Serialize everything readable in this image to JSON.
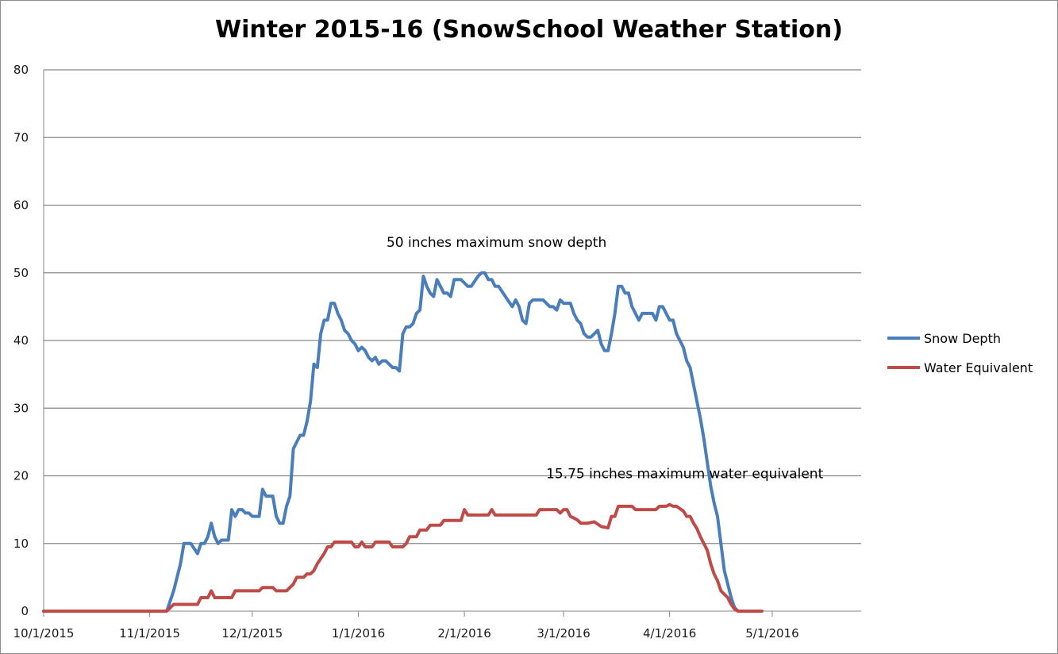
{
  "chart_data": {
    "type": "line",
    "title": "Winter 2015-16 (SnowSchool Weather Station)",
    "xlabel": "",
    "ylabel": "",
    "ylim": [
      0,
      80
    ],
    "yticks": [
      0,
      10,
      20,
      30,
      40,
      50,
      60,
      70,
      80
    ],
    "xlim": [
      "10/1/2015",
      "5/27/2016"
    ],
    "xticks": [
      "10/1/2015",
      "11/1/2015",
      "12/1/2015",
      "1/1/2016",
      "2/1/2016",
      "3/1/2016",
      "4/1/2016",
      "5/1/2016"
    ],
    "grid": "horizontal",
    "legend": "right",
    "series": [
      {
        "name": "Snow Depth",
        "color": "#4a7ebb",
        "points": [
          [
            "10/1/2015",
            0
          ],
          [
            "11/6/2015",
            0
          ],
          [
            "11/8/2015",
            3
          ],
          [
            "11/10/2015",
            7
          ],
          [
            "11/11/2015",
            10
          ],
          [
            "11/13/2015",
            10
          ],
          [
            "11/15/2015",
            8.5
          ],
          [
            "11/16/2015",
            10
          ],
          [
            "11/17/2015",
            10
          ],
          [
            "11/18/2015",
            11
          ],
          [
            "11/19/2015",
            13
          ],
          [
            "11/20/2015",
            11
          ],
          [
            "11/21/2015",
            10
          ],
          [
            "11/22/2015",
            10.5
          ],
          [
            "11/24/2015",
            10.5
          ],
          [
            "11/25/2015",
            15
          ],
          [
            "11/26/2015",
            14
          ],
          [
            "11/27/2015",
            15
          ],
          [
            "11/28/2015",
            15
          ],
          [
            "11/29/2015",
            14.5
          ],
          [
            "11/30/2015",
            14.5
          ],
          [
            "12/1/2015",
            14
          ],
          [
            "12/3/2015",
            14
          ],
          [
            "12/4/2015",
            18
          ],
          [
            "12/5/2015",
            17
          ],
          [
            "12/7/2015",
            17
          ],
          [
            "12/8/2015",
            14
          ],
          [
            "12/9/2015",
            13
          ],
          [
            "12/10/2015",
            13
          ],
          [
            "12/11/2015",
            15.5
          ],
          [
            "12/12/2015",
            17
          ],
          [
            "12/13/2015",
            24
          ],
          [
            "12/15/2015",
            26
          ],
          [
            "12/16/2015",
            26
          ],
          [
            "12/17/2015",
            28
          ],
          [
            "12/18/2015",
            31
          ],
          [
            "12/19/2015",
            36.5
          ],
          [
            "12/20/2015",
            36
          ],
          [
            "12/21/2015",
            41
          ],
          [
            "12/22/2015",
            43
          ],
          [
            "12/23/2015",
            43
          ],
          [
            "12/24/2015",
            45.5
          ],
          [
            "12/25/2015",
            45.5
          ],
          [
            "12/26/2015",
            44
          ],
          [
            "12/27/2015",
            43
          ],
          [
            "12/28/2015",
            41.5
          ],
          [
            "12/29/2015",
            41
          ],
          [
            "12/30/2015",
            40
          ],
          [
            "12/31/2015",
            39.5
          ],
          [
            "1/1/2016",
            38.5
          ],
          [
            "1/2/2016",
            39
          ],
          [
            "1/3/2016",
            38.5
          ],
          [
            "1/4/2016",
            37.5
          ],
          [
            "1/5/2016",
            37
          ],
          [
            "1/6/2016",
            37.5
          ],
          [
            "1/7/2016",
            36.5
          ],
          [
            "1/8/2016",
            37
          ],
          [
            "1/9/2016",
            37
          ],
          [
            "1/11/2016",
            36
          ],
          [
            "1/12/2016",
            36
          ],
          [
            "1/13/2016",
            35.5
          ],
          [
            "1/14/2016",
            41
          ],
          [
            "1/15/2016",
            42
          ],
          [
            "1/16/2016",
            42
          ],
          [
            "1/17/2016",
            42.5
          ],
          [
            "1/18/2016",
            44
          ],
          [
            "1/19/2016",
            44.5
          ],
          [
            "1/20/2016",
            49.5
          ],
          [
            "1/21/2016",
            48
          ],
          [
            "1/22/2016",
            47
          ],
          [
            "1/23/2016",
            46.5
          ],
          [
            "1/24/2016",
            49
          ],
          [
            "1/25/2016",
            48
          ],
          [
            "1/26/2016",
            47
          ],
          [
            "1/27/2016",
            47
          ],
          [
            "1/28/2016",
            46.5
          ],
          [
            "1/29/2016",
            49
          ],
          [
            "1/31/2016",
            49
          ],
          [
            "2/1/2016",
            48.5
          ],
          [
            "2/2/2016",
            48
          ],
          [
            "2/3/2016",
            48
          ],
          [
            "2/5/2016",
            49.5
          ],
          [
            "2/6/2016",
            50
          ],
          [
            "2/7/2016",
            50
          ],
          [
            "2/8/2016",
            49
          ],
          [
            "2/9/2016",
            49
          ],
          [
            "2/10/2016",
            48
          ],
          [
            "2/11/2016",
            48
          ],
          [
            "2/13/2016",
            46.5
          ],
          [
            "2/15/2016",
            45
          ],
          [
            "2/16/2016",
            46
          ],
          [
            "2/17/2016",
            45
          ],
          [
            "2/18/2016",
            43
          ],
          [
            "2/19/2016",
            42.5
          ],
          [
            "2/20/2016",
            45.5
          ],
          [
            "2/21/2016",
            46
          ],
          [
            "2/24/2016",
            46
          ],
          [
            "2/25/2016",
            45.5
          ],
          [
            "2/26/2016",
            45
          ],
          [
            "2/27/2016",
            45
          ],
          [
            "2/28/2016",
            44.5
          ],
          [
            "2/29/2016",
            46
          ],
          [
            "3/1/2016",
            45.5
          ],
          [
            "3/3/2016",
            45.5
          ],
          [
            "3/4/2016",
            44
          ],
          [
            "3/5/2016",
            43
          ],
          [
            "3/6/2016",
            42.5
          ],
          [
            "3/7/2016",
            41
          ],
          [
            "3/8/2016",
            40.5
          ],
          [
            "3/9/2016",
            40.5
          ],
          [
            "3/10/2016",
            41
          ],
          [
            "3/11/2016",
            41.5
          ],
          [
            "3/12/2016",
            39.5
          ],
          [
            "3/13/2016",
            38.5
          ],
          [
            "3/14/2016",
            38.5
          ],
          [
            "3/15/2016",
            41
          ],
          [
            "3/16/2016",
            44
          ],
          [
            "3/17/2016",
            48
          ],
          [
            "3/18/2016",
            48
          ],
          [
            "3/19/2016",
            47
          ],
          [
            "3/20/2016",
            47
          ],
          [
            "3/21/2016",
            45
          ],
          [
            "3/22/2016",
            44
          ],
          [
            "3/23/2016",
            43
          ],
          [
            "3/24/2016",
            44
          ],
          [
            "3/27/2016",
            44
          ],
          [
            "3/28/2016",
            43
          ],
          [
            "3/29/2016",
            45
          ],
          [
            "3/30/2016",
            45
          ],
          [
            "3/31/2016",
            44
          ],
          [
            "4/1/2016",
            43
          ],
          [
            "4/2/2016",
            43
          ],
          [
            "4/3/2016",
            41
          ],
          [
            "4/4/2016",
            40
          ],
          [
            "4/5/2016",
            39
          ],
          [
            "4/6/2016",
            37
          ],
          [
            "4/7/2016",
            36
          ],
          [
            "4/8/2016",
            33.5
          ],
          [
            "4/9/2016",
            31
          ],
          [
            "4/10/2016",
            28.5
          ],
          [
            "4/11/2016",
            25.5
          ],
          [
            "4/12/2016",
            22
          ],
          [
            "4/13/2016",
            18.5
          ],
          [
            "4/14/2016",
            16
          ],
          [
            "4/15/2016",
            14
          ],
          [
            "4/16/2016",
            10
          ],
          [
            "4/17/2016",
            6
          ],
          [
            "4/18/2016",
            4
          ],
          [
            "4/19/2016",
            2
          ],
          [
            "4/20/2016",
            0.5
          ],
          [
            "4/21/2016",
            0
          ],
          [
            "4/25/2016",
            0
          ]
        ]
      },
      {
        "name": "Water Equivalent",
        "color": "#be4b48",
        "points": [
          [
            "10/1/2015",
            0
          ],
          [
            "11/6/2015",
            0
          ],
          [
            "11/8/2015",
            1
          ],
          [
            "11/15/2015",
            1
          ],
          [
            "11/16/2015",
            2
          ],
          [
            "11/18/2015",
            2
          ],
          [
            "11/19/2015",
            3
          ],
          [
            "11/20/2015",
            2
          ],
          [
            "11/25/2015",
            2
          ],
          [
            "11/26/2015",
            3
          ],
          [
            "12/3/2015",
            3
          ],
          [
            "12/4/2015",
            3.5
          ],
          [
            "12/7/2015",
            3.5
          ],
          [
            "12/8/2015",
            3
          ],
          [
            "12/11/2015",
            3
          ],
          [
            "12/12/2015",
            3.5
          ],
          [
            "12/13/2015",
            4
          ],
          [
            "12/14/2015",
            5
          ],
          [
            "12/16/2015",
            5
          ],
          [
            "12/17/2015",
            5.5
          ],
          [
            "12/18/2015",
            5.5
          ],
          [
            "12/19/2015",
            6
          ],
          [
            "12/20/2015",
            7
          ],
          [
            "12/22/2015",
            8.5
          ],
          [
            "12/23/2015",
            9.5
          ],
          [
            "12/24/2015",
            9.5
          ],
          [
            "12/25/2015",
            10.2
          ],
          [
            "12/30/2015",
            10.2
          ],
          [
            "12/31/2015",
            9.5
          ],
          [
            "1/1/2016",
            9.5
          ],
          [
            "1/2/2016",
            10.2
          ],
          [
            "1/3/2016",
            9.5
          ],
          [
            "1/5/2016",
            9.5
          ],
          [
            "1/6/2016",
            10.2
          ],
          [
            "1/10/2016",
            10.2
          ],
          [
            "1/11/2016",
            9.5
          ],
          [
            "1/14/2016",
            9.5
          ],
          [
            "1/15/2016",
            10
          ],
          [
            "1/16/2016",
            11
          ],
          [
            "1/18/2016",
            11
          ],
          [
            "1/19/2016",
            12
          ],
          [
            "1/21/2016",
            12
          ],
          [
            "1/22/2016",
            12.7
          ],
          [
            "1/25/2016",
            12.7
          ],
          [
            "1/26/2016",
            13.4
          ],
          [
            "1/31/2016",
            13.4
          ],
          [
            "2/1/2016",
            15
          ],
          [
            "2/2/2016",
            14.2
          ],
          [
            "2/8/2016",
            14.2
          ],
          [
            "2/9/2016",
            15
          ],
          [
            "2/10/2016",
            14.2
          ],
          [
            "2/22/2016",
            14.2
          ],
          [
            "2/23/2016",
            15
          ],
          [
            "2/28/2016",
            15
          ],
          [
            "2/29/2016",
            14.5
          ],
          [
            "3/1/2016",
            15
          ],
          [
            "3/2/2016",
            15
          ],
          [
            "3/3/2016",
            14
          ],
          [
            "3/5/2016",
            13.5
          ],
          [
            "3/6/2016",
            13
          ],
          [
            "3/8/2016",
            13
          ],
          [
            "3/10/2016",
            13.2
          ],
          [
            "3/12/2016",
            12.5
          ],
          [
            "3/14/2016",
            12.3
          ],
          [
            "3/15/2016",
            14
          ],
          [
            "3/16/2016",
            14
          ],
          [
            "3/17/2016",
            15.5
          ],
          [
            "3/21/2016",
            15.5
          ],
          [
            "3/22/2016",
            15
          ],
          [
            "3/28/2016",
            15
          ],
          [
            "3/29/2016",
            15.5
          ],
          [
            "3/31/2016",
            15.5
          ],
          [
            "4/1/2016",
            15.75
          ],
          [
            "4/2/2016",
            15.5
          ],
          [
            "4/3/2016",
            15.5
          ],
          [
            "4/5/2016",
            14.8
          ],
          [
            "4/6/2016",
            14
          ],
          [
            "4/7/2016",
            14
          ],
          [
            "4/8/2016",
            13
          ],
          [
            "4/9/2016",
            12.2
          ],
          [
            "4/10/2016",
            11
          ],
          [
            "4/12/2016",
            9
          ],
          [
            "4/13/2016",
            7
          ],
          [
            "4/14/2016",
            5.5
          ],
          [
            "4/15/2016",
            4.5
          ],
          [
            "4/16/2016",
            3
          ],
          [
            "4/17/2016",
            2.5
          ],
          [
            "4/18/2016",
            2
          ],
          [
            "4/19/2016",
            1
          ],
          [
            "4/20/2016",
            0.3
          ],
          [
            "4/21/2016",
            0
          ],
          [
            "4/28/2016",
            0
          ]
        ]
      }
    ],
    "annotations": [
      {
        "text": "50 inches maximum snow depth",
        "x": "2/6/2016",
        "y": 50
      },
      {
        "text": "15.75 inches maximum water equivalent",
        "x": "4/1/2016",
        "y": 15.75
      }
    ]
  }
}
